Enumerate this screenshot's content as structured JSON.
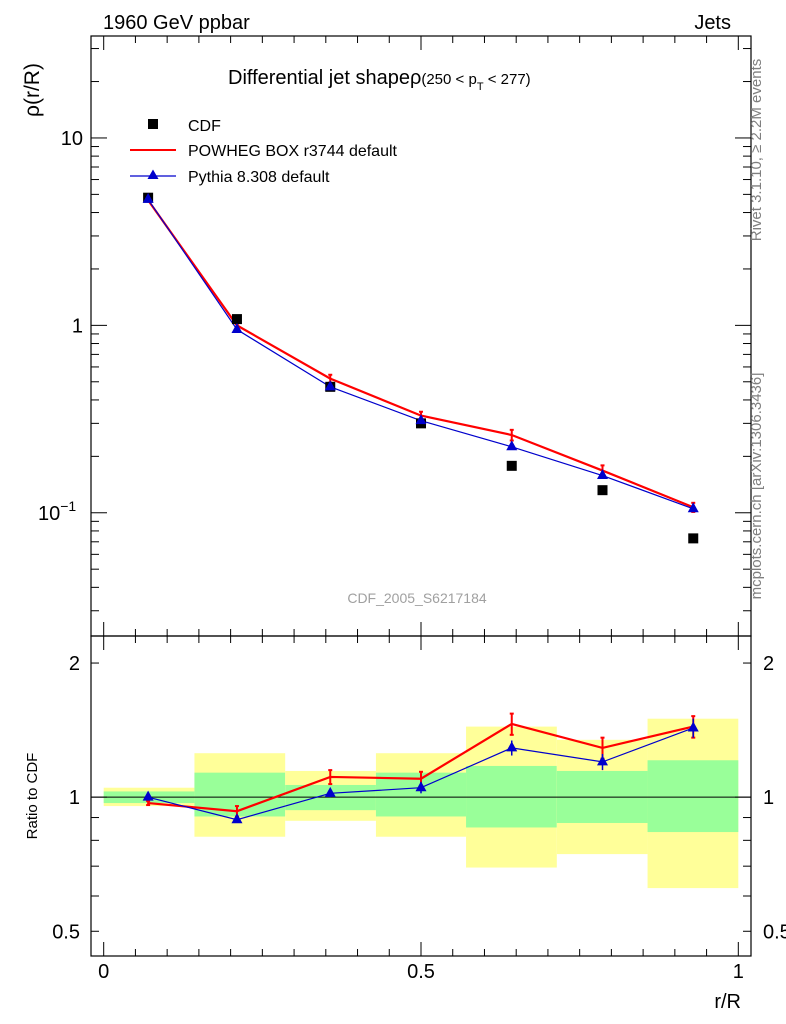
{
  "header": {
    "left": "1960 GeV ppbar",
    "right": "Jets"
  },
  "side_labels": {
    "rivet": "Rivet 3.1.10, ≥ 2.2M events",
    "mcplots": "mcplots.cern.ch [arXiv:1306.3436]"
  },
  "chart_data": [
    {
      "type": "line",
      "title_main": "Differential jet shapeρ",
      "title_sub": "(250 < p",
      "title_sub_index": "T",
      "title_sub_end": " < 277)",
      "ylabel": "ρ(r/R)",
      "y_scale": "log",
      "ylim": [
        0.022,
        35
      ],
      "y_ticks": [
        {
          "v": 10,
          "label": "10"
        },
        {
          "v": 1,
          "label": "1"
        },
        {
          "v": 0.1,
          "label": "10",
          "sup": "−1"
        }
      ],
      "legend_position": "top-left",
      "watermark": "CDF_2005_S6217184",
      "series": [
        {
          "name": "CDF",
          "style": "markers-square",
          "color": "#000000",
          "x": [
            0.07,
            0.21,
            0.357,
            0.5,
            0.643,
            0.786,
            0.929
          ],
          "y": [
            4.8,
            1.08,
            0.47,
            0.3,
            0.178,
            0.132,
            0.073
          ]
        },
        {
          "name": "POWHEG BOX r3744 default",
          "style": "line-errors",
          "color": "#ff0000",
          "x": [
            0.07,
            0.21,
            0.357,
            0.5,
            0.643,
            0.786,
            0.929
          ],
          "y": [
            4.65,
            1.0,
            0.52,
            0.33,
            0.26,
            0.168,
            0.107
          ],
          "err": [
            0.05,
            0.02,
            0.025,
            0.016,
            0.017,
            0.011,
            0.006
          ]
        },
        {
          "name": "Pythia 8.308 default",
          "style": "line-triangles",
          "color": "#0000cc",
          "x": [
            0.07,
            0.21,
            0.357,
            0.5,
            0.643,
            0.786,
            0.929
          ],
          "y": [
            4.7,
            0.95,
            0.47,
            0.31,
            0.225,
            0.158,
            0.105
          ],
          "err": [
            0.04,
            0.01,
            0.01,
            0.008,
            0.008,
            0.005,
            0.004
          ]
        }
      ]
    },
    {
      "type": "line",
      "ylabel": "Ratio to CDF",
      "xlabel": "r/R",
      "y_scale": "log",
      "ylim": [
        0.44,
        2.3
      ],
      "xlim": [
        -0.02,
        1.02
      ],
      "y_ticks": [
        {
          "v": 2,
          "label": "2"
        },
        {
          "v": 1,
          "label": "1"
        },
        {
          "v": 0.5,
          "label": "0.5"
        }
      ],
      "x_ticks": [
        {
          "v": 0,
          "label": "0"
        },
        {
          "v": 0.5,
          "label": "0.5"
        },
        {
          "v": 1,
          "label": "1"
        }
      ],
      "bands": [
        {
          "x0": 0.0,
          "x1": 0.143,
          "yellow": [
            0.955,
            1.05
          ],
          "green": [
            0.97,
            1.03
          ]
        },
        {
          "x0": 0.143,
          "x1": 0.286,
          "yellow": [
            0.815,
            1.255
          ],
          "green": [
            0.905,
            1.135
          ]
        },
        {
          "x0": 0.286,
          "x1": 0.429,
          "yellow": [
            0.885,
            1.145
          ],
          "green": [
            0.935,
            1.065
          ]
        },
        {
          "x0": 0.429,
          "x1": 0.571,
          "yellow": [
            0.815,
            1.255
          ],
          "green": [
            0.905,
            1.135
          ]
        },
        {
          "x0": 0.571,
          "x1": 0.714,
          "yellow": [
            0.695,
            1.44
          ],
          "green": [
            0.855,
            1.175
          ]
        },
        {
          "x0": 0.714,
          "x1": 0.857,
          "yellow": [
            0.745,
            1.345
          ],
          "green": [
            0.875,
            1.145
          ]
        },
        {
          "x0": 0.857,
          "x1": 1.0,
          "yellow": [
            0.625,
            1.5
          ],
          "green": [
            0.835,
            1.21
          ]
        }
      ],
      "series": [
        {
          "name": "POWHEG BOX r3744 default",
          "color": "#ff0000",
          "x": [
            0.07,
            0.21,
            0.357,
            0.5,
            0.643,
            0.786,
            0.929
          ],
          "y": [
            0.97,
            0.93,
            1.11,
            1.1,
            1.46,
            1.29,
            1.44
          ],
          "err": [
            0.01,
            0.025,
            0.04,
            0.04,
            0.08,
            0.07,
            0.08
          ]
        },
        {
          "name": "Pythia 8.308 default",
          "color": "#0000cc",
          "x": [
            0.07,
            0.21,
            0.357,
            0.5,
            0.643,
            0.786,
            0.929
          ],
          "y": [
            1.0,
            0.89,
            1.02,
            1.05,
            1.29,
            1.2,
            1.43
          ],
          "err": [
            0.008,
            0.01,
            0.02,
            0.03,
            0.05,
            0.05,
            0.07
          ]
        }
      ]
    }
  ]
}
